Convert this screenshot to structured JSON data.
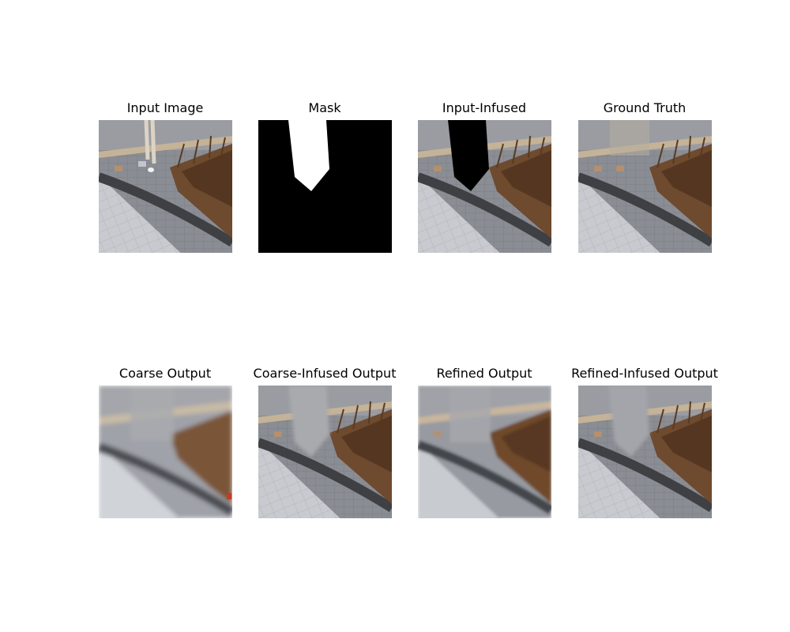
{
  "figure": {
    "panels": [
      {
        "title": "Input Image"
      },
      {
        "title": "Mask"
      },
      {
        "title": "Input-Infused"
      },
      {
        "title": "Ground Truth"
      },
      {
        "title": "Coarse Output"
      },
      {
        "title": "Coarse-Infused Output"
      },
      {
        "title": "Refined Output"
      },
      {
        "title": "Refined-Infused Output"
      }
    ]
  },
  "colors": {
    "pavement_light": "#c9cbd0",
    "pavement_grid": "#b3b6bb",
    "curb_dark": "#3e4044",
    "sidewalk_grey": "#8d9096",
    "tan_stripe": "#c7b69d",
    "tan_tile": "#b58f6e",
    "shrub_brown": "#6e4a2e",
    "shrub_dark": "#4a2f1c",
    "mask_black": "#000000",
    "mask_white": "#ffffff"
  }
}
